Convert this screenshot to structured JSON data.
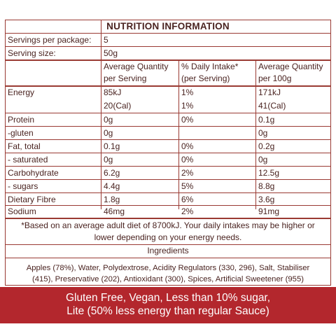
{
  "title": "NUTRITION INFORMATION",
  "servings_per_package_label": "Servings per package:",
  "servings_per_package_value": "5",
  "serving_size_label": "Serving size:",
  "serving_size_value": "50g",
  "headers": {
    "col1": [
      "Average Quantity",
      "per Serving"
    ],
    "col2": [
      "% Daily Intake*",
      "(per Serving)"
    ],
    "col3": [
      "Average Quantity",
      "per 100g"
    ]
  },
  "rows": [
    {
      "label": "Energy",
      "per_serving": "85kJ",
      "daily": "1%",
      "per_100g": "171kJ"
    },
    {
      "label": "",
      "per_serving": "20(Cal)",
      "daily": "1%",
      "per_100g": "41(Cal)"
    },
    {
      "label": "Protein",
      "per_serving": "0g",
      "daily": "0%",
      "per_100g": "0.1g"
    },
    {
      "label": "-gluten",
      "per_serving": "0g",
      "daily": "",
      "per_100g": "0g"
    },
    {
      "label": "Fat, total",
      "per_serving": "0.1g",
      "daily": "0%",
      "per_100g": "0.2g"
    },
    {
      "label": "- saturated",
      "per_serving": "0g",
      "daily": "0%",
      "per_100g": "0g"
    },
    {
      "label": "Carbohydrate",
      "per_serving": "6.2g",
      "daily": "2%",
      "per_100g": "12.5g"
    },
    {
      "label": "- sugars",
      "per_serving": "4.4g",
      "daily": "5%",
      "per_100g": "8.8g"
    },
    {
      "label": "Dietary Fibre",
      "per_serving": "1.8g",
      "daily": "6%",
      "per_100g": "3.6g"
    },
    {
      "label": "Sodium",
      "per_serving": "46mg",
      "daily": "2%",
      "per_100g": "91mg"
    }
  ],
  "footnote": [
    "*Based on an average adult diet of 8700kJ. Your daily intakes may be higher or",
    "lower depending on your energy needs."
  ],
  "ingredients_heading": "Ingredients",
  "ingredients_text": [
    "Apples (78%), Water, Polydextrose, Acidity Regulators (330, 296), Salt, Stabiliser",
    "(415), Preservative (202), Antioxidant (300), Spices, Artificial Sweetener (955)"
  ],
  "banner": [
    "Gluten Free, Vegan, Less than 10% sugar,",
    "Lite (50% less energy than regular Sauce)"
  ],
  "colors": {
    "accent": "#b3272d",
    "border": "#9a3a33",
    "text": "#4a2320"
  }
}
